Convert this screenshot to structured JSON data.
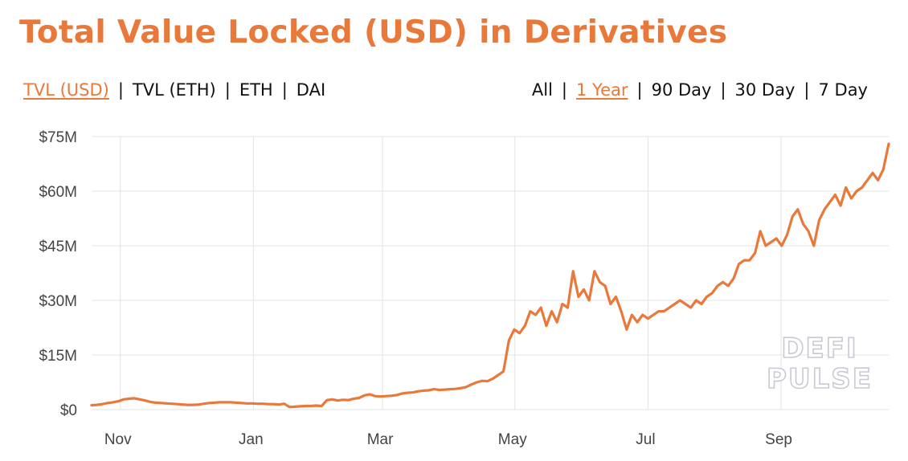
{
  "title": "Total Value Locked (USD) in Derivatives",
  "metric_tabs": [
    {
      "label": "TVL (USD)",
      "active": true
    },
    {
      "label": "TVL (ETH)",
      "active": false
    },
    {
      "label": "ETH",
      "active": false
    },
    {
      "label": "DAI",
      "active": false
    }
  ],
  "range_tabs": [
    {
      "label": "All",
      "active": false
    },
    {
      "label": "1 Year",
      "active": true
    },
    {
      "label": "90 Day",
      "active": false
    },
    {
      "label": "30 Day",
      "active": false
    },
    {
      "label": "7 Day",
      "active": false
    }
  ],
  "separator": "|",
  "watermark": [
    "DEFI",
    "PULSE"
  ],
  "colors": {
    "accent": "#e8793a",
    "line": "#e8793a",
    "grid": "#e3e3e3"
  },
  "chart_data": {
    "type": "line",
    "ylim": [
      0,
      75
    ],
    "y_ticks": [
      {
        "value": 0,
        "label": "$0"
      },
      {
        "value": 15,
        "label": "$15M"
      },
      {
        "value": 30,
        "label": "$30M"
      },
      {
        "value": 45,
        "label": "$45M"
      },
      {
        "value": 60,
        "label": "$60M"
      },
      {
        "value": 75,
        "label": "$75M"
      }
    ],
    "x_ticks": [
      "Nov",
      "Jan",
      "Mar",
      "May",
      "Jul",
      "Sep"
    ],
    "grid": true,
    "series": [
      {
        "values": [
          1.2,
          1.3,
          1.5,
          1.8,
          2.0,
          2.3,
          2.8,
          3.0,
          3.1,
          2.8,
          2.5,
          2.1,
          1.9,
          1.8,
          1.7,
          1.6,
          1.5,
          1.4,
          1.3,
          1.3,
          1.4,
          1.6,
          1.8,
          1.9,
          2.0,
          2.0,
          2.0,
          1.9,
          1.8,
          1.7,
          1.7,
          1.6,
          1.6,
          1.5,
          1.5,
          1.4,
          1.6,
          0.7,
          0.8,
          0.9,
          1.0,
          1.0,
          1.1,
          1.0,
          2.6,
          2.8,
          2.5,
          2.7,
          2.6,
          3.0,
          3.2,
          3.9,
          4.2,
          3.7,
          3.6,
          3.7,
          3.8,
          4.0,
          4.4,
          4.6,
          4.7,
          5.0,
          5.2,
          5.3,
          5.6,
          5.4,
          5.5,
          5.6,
          5.7,
          5.9,
          6.2,
          6.9,
          7.5,
          7.9,
          7.8,
          8.5,
          9.5,
          10.5,
          19,
          22,
          21,
          23,
          27,
          26,
          28,
          23,
          27,
          24,
          29,
          28,
          38,
          31,
          33,
          30,
          38,
          35,
          34,
          29,
          31,
          27,
          22,
          26,
          24,
          26,
          25,
          26,
          27,
          27,
          28,
          29,
          30,
          29,
          28,
          30,
          29,
          31,
          32,
          34,
          35,
          34,
          36,
          40,
          41,
          41,
          43,
          49,
          45,
          46,
          47,
          45,
          48,
          53,
          55,
          51,
          49,
          45,
          52,
          55,
          57,
          59,
          56,
          61,
          58,
          60,
          61,
          63,
          65,
          63,
          66,
          73
        ],
        "note_units": "USD millions"
      }
    ],
    "x_range": [
      "Oct",
      "Oct"
    ]
  }
}
